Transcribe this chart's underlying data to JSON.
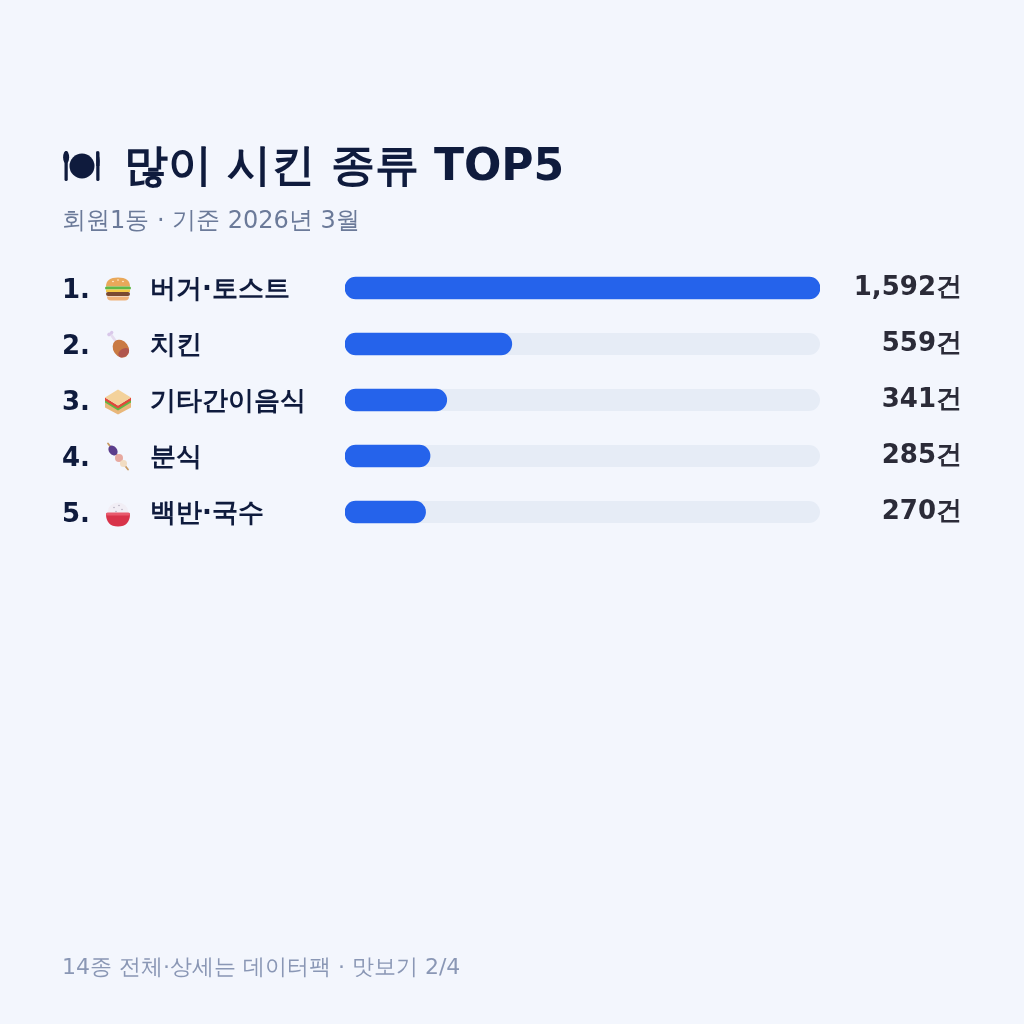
{
  "chart_data": {
    "type": "bar",
    "orientation": "horizontal",
    "title": "많이 시킨 종류 TOP5",
    "subtitle": "회원1동 · 기준 2026년 3월",
    "categories": [
      "1. 버거·토스트",
      "2. 치킨",
      "3. 기타간이음식",
      "4. 분식",
      "5. 백반·국수"
    ],
    "values": [
      1592,
      559,
      341,
      285,
      270
    ],
    "value_labels": [
      "1,592건",
      "559건",
      "341건",
      "285건",
      "270건"
    ],
    "color": "#2563eb",
    "xlim": [
      0,
      1592
    ],
    "tick_labels": "y",
    "annotations": [
      "14종 전체·상세는 데이터팩 · 맛보기 2/4"
    ]
  }
}
